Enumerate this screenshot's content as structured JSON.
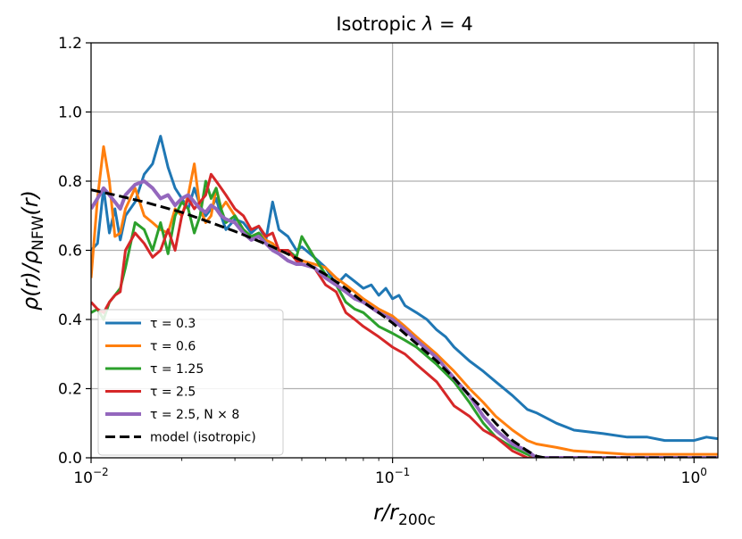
{
  "chart_data": {
    "type": "line",
    "title": "Isotropic λ = 4",
    "xlabel": "r/r200c",
    "ylabel": "ρ(r)/ρNFW(r)",
    "xscale": "log",
    "xlim": [
      0.01,
      1.2
    ],
    "ylim": [
      0,
      1.2
    ],
    "grid": true,
    "legend_position": "lower-left",
    "x_ticks": [
      {
        "value": 0.01,
        "base": "10",
        "exp": "−2"
      },
      {
        "value": 0.1,
        "base": "10",
        "exp": "−1"
      },
      {
        "value": 1,
        "base": "10",
        "exp": "0"
      }
    ],
    "y_ticks": [
      "0.0",
      "0.2",
      "0.4",
      "0.6",
      "0.8",
      "1.0",
      "1.2"
    ],
    "series": [
      {
        "name": "τ = 0.3",
        "color": "#1f77b4",
        "style": "solid",
        "x": [
          0.01,
          0.0105,
          0.011,
          0.0115,
          0.012,
          0.0125,
          0.013,
          0.014,
          0.015,
          0.016,
          0.017,
          0.018,
          0.019,
          0.02,
          0.021,
          0.022,
          0.023,
          0.024,
          0.025,
          0.026,
          0.027,
          0.028,
          0.03,
          0.032,
          0.034,
          0.036,
          0.038,
          0.04,
          0.042,
          0.045,
          0.048,
          0.05,
          0.055,
          0.06,
          0.065,
          0.07,
          0.075,
          0.08,
          0.085,
          0.09,
          0.095,
          0.1,
          0.105,
          0.11,
          0.12,
          0.13,
          0.14,
          0.15,
          0.16,
          0.18,
          0.2,
          0.22,
          0.25,
          0.28,
          0.3,
          0.35,
          0.4,
          0.5,
          0.6,
          0.7,
          0.8,
          0.9,
          1.0,
          1.1,
          1.2
        ],
        "y": [
          0.6,
          0.62,
          0.78,
          0.65,
          0.72,
          0.63,
          0.7,
          0.74,
          0.82,
          0.85,
          0.93,
          0.84,
          0.78,
          0.75,
          0.72,
          0.78,
          0.73,
          0.7,
          0.72,
          0.75,
          0.7,
          0.66,
          0.69,
          0.68,
          0.65,
          0.67,
          0.63,
          0.74,
          0.66,
          0.64,
          0.6,
          0.61,
          0.58,
          0.55,
          0.5,
          0.53,
          0.51,
          0.49,
          0.5,
          0.47,
          0.49,
          0.46,
          0.47,
          0.44,
          0.42,
          0.4,
          0.37,
          0.35,
          0.32,
          0.28,
          0.25,
          0.22,
          0.18,
          0.14,
          0.13,
          0.1,
          0.08,
          0.07,
          0.06,
          0.06,
          0.05,
          0.05,
          0.05,
          0.06,
          0.055
        ]
      },
      {
        "name": "τ = 0.6",
        "color": "#ff7f0e",
        "style": "solid",
        "x": [
          0.01,
          0.0105,
          0.011,
          0.0115,
          0.012,
          0.0125,
          0.013,
          0.014,
          0.015,
          0.016,
          0.017,
          0.018,
          0.019,
          0.02,
          0.021,
          0.022,
          0.023,
          0.024,
          0.025,
          0.026,
          0.027,
          0.028,
          0.03,
          0.032,
          0.034,
          0.036,
          0.038,
          0.04,
          0.042,
          0.045,
          0.048,
          0.05,
          0.055,
          0.06,
          0.065,
          0.07,
          0.075,
          0.08,
          0.09,
          0.1,
          0.11,
          0.12,
          0.14,
          0.16,
          0.18,
          0.2,
          0.22,
          0.25,
          0.28,
          0.3,
          0.35,
          0.4,
          0.5,
          0.6,
          0.8,
          1.0,
          1.2
        ],
        "y": [
          0.52,
          0.75,
          0.9,
          0.8,
          0.64,
          0.65,
          0.72,
          0.78,
          0.7,
          0.68,
          0.66,
          0.65,
          0.72,
          0.7,
          0.76,
          0.85,
          0.72,
          0.68,
          0.7,
          0.78,
          0.72,
          0.74,
          0.7,
          0.66,
          0.64,
          0.65,
          0.63,
          0.62,
          0.6,
          0.59,
          0.58,
          0.57,
          0.56,
          0.55,
          0.52,
          0.5,
          0.48,
          0.46,
          0.43,
          0.41,
          0.38,
          0.35,
          0.3,
          0.25,
          0.2,
          0.16,
          0.12,
          0.08,
          0.05,
          0.04,
          0.03,
          0.02,
          0.015,
          0.01,
          0.01,
          0.01,
          0.01
        ]
      },
      {
        "name": "τ = 1.25",
        "color": "#2ca02c",
        "style": "solid",
        "x": [
          0.01,
          0.0105,
          0.011,
          0.0115,
          0.012,
          0.0125,
          0.013,
          0.014,
          0.015,
          0.016,
          0.017,
          0.018,
          0.019,
          0.02,
          0.021,
          0.022,
          0.023,
          0.024,
          0.025,
          0.026,
          0.027,
          0.028,
          0.03,
          0.032,
          0.034,
          0.036,
          0.038,
          0.04,
          0.042,
          0.045,
          0.048,
          0.05,
          0.055,
          0.06,
          0.065,
          0.07,
          0.075,
          0.08,
          0.09,
          0.1,
          0.11,
          0.12,
          0.14,
          0.16,
          0.18,
          0.2,
          0.22,
          0.25,
          0.28,
          0.3,
          0.35,
          0.4,
          0.5,
          0.6,
          0.8,
          1.0,
          1.2
        ],
        "y": [
          0.42,
          0.43,
          0.4,
          0.45,
          0.47,
          0.49,
          0.55,
          0.68,
          0.66,
          0.6,
          0.68,
          0.59,
          0.7,
          0.74,
          0.72,
          0.65,
          0.7,
          0.8,
          0.75,
          0.78,
          0.72,
          0.68,
          0.7,
          0.66,
          0.64,
          0.65,
          0.62,
          0.61,
          0.6,
          0.6,
          0.58,
          0.64,
          0.58,
          0.53,
          0.5,
          0.45,
          0.43,
          0.42,
          0.38,
          0.36,
          0.34,
          0.32,
          0.27,
          0.22,
          0.16,
          0.1,
          0.06,
          0.03,
          0.01,
          0.0,
          0.0,
          0.0,
          0.0,
          0.0,
          0.0,
          0.0,
          0.0
        ]
      },
      {
        "name": "τ = 2.5",
        "color": "#d62728",
        "style": "solid",
        "x": [
          0.01,
          0.0105,
          0.011,
          0.0115,
          0.012,
          0.0125,
          0.013,
          0.014,
          0.015,
          0.016,
          0.017,
          0.018,
          0.019,
          0.02,
          0.021,
          0.022,
          0.023,
          0.024,
          0.025,
          0.026,
          0.027,
          0.028,
          0.03,
          0.032,
          0.034,
          0.036,
          0.038,
          0.04,
          0.042,
          0.045,
          0.048,
          0.05,
          0.055,
          0.06,
          0.065,
          0.07,
          0.075,
          0.08,
          0.09,
          0.1,
          0.11,
          0.12,
          0.14,
          0.16,
          0.18,
          0.2,
          0.22,
          0.25,
          0.28,
          0.3,
          0.35,
          0.4,
          0.5,
          0.6,
          0.8,
          1.0,
          1.2
        ],
        "y": [
          0.45,
          0.43,
          0.42,
          0.45,
          0.47,
          0.48,
          0.6,
          0.65,
          0.62,
          0.58,
          0.6,
          0.66,
          0.6,
          0.7,
          0.75,
          0.72,
          0.74,
          0.76,
          0.82,
          0.8,
          0.78,
          0.76,
          0.72,
          0.7,
          0.66,
          0.67,
          0.64,
          0.65,
          0.6,
          0.6,
          0.57,
          0.56,
          0.55,
          0.5,
          0.48,
          0.42,
          0.4,
          0.38,
          0.35,
          0.32,
          0.3,
          0.27,
          0.22,
          0.15,
          0.12,
          0.08,
          0.06,
          0.02,
          0.0,
          0.0,
          0.0,
          0.0,
          0.0,
          0.0,
          0.0,
          0.0,
          0.0
        ]
      },
      {
        "name": "τ = 2.5, N × 8",
        "color": "#9467bd",
        "style": "solid",
        "x": [
          0.01,
          0.0105,
          0.011,
          0.0115,
          0.012,
          0.0125,
          0.013,
          0.014,
          0.015,
          0.016,
          0.017,
          0.018,
          0.019,
          0.02,
          0.021,
          0.022,
          0.023,
          0.024,
          0.025,
          0.026,
          0.027,
          0.028,
          0.03,
          0.032,
          0.034,
          0.036,
          0.038,
          0.04,
          0.042,
          0.045,
          0.048,
          0.05,
          0.055,
          0.06,
          0.065,
          0.07,
          0.075,
          0.08,
          0.09,
          0.1,
          0.11,
          0.12,
          0.14,
          0.16,
          0.18,
          0.2,
          0.22,
          0.25,
          0.28,
          0.3,
          0.35,
          0.4,
          0.5,
          0.6,
          0.8,
          1.0,
          1.2
        ],
        "y": [
          0.72,
          0.75,
          0.78,
          0.76,
          0.74,
          0.72,
          0.76,
          0.79,
          0.8,
          0.78,
          0.75,
          0.76,
          0.73,
          0.75,
          0.76,
          0.74,
          0.72,
          0.71,
          0.73,
          0.72,
          0.7,
          0.69,
          0.68,
          0.65,
          0.63,
          0.64,
          0.62,
          0.6,
          0.59,
          0.57,
          0.56,
          0.56,
          0.55,
          0.52,
          0.5,
          0.48,
          0.46,
          0.45,
          0.42,
          0.4,
          0.37,
          0.34,
          0.29,
          0.23,
          0.18,
          0.12,
          0.08,
          0.04,
          0.02,
          0.0,
          0.0,
          0.0,
          0.0,
          0.0,
          0.0,
          0.0,
          0.0
        ]
      },
      {
        "name": "model (isotropic)",
        "color": "#000000",
        "style": "dashed",
        "x": [
          0.01,
          0.012,
          0.015,
          0.02,
          0.025,
          0.03,
          0.04,
          0.05,
          0.06,
          0.07,
          0.08,
          0.09,
          0.1,
          0.12,
          0.14,
          0.16,
          0.18,
          0.2,
          0.22,
          0.25,
          0.28,
          0.3,
          0.32,
          0.35,
          0.4,
          0.5,
          0.6,
          0.8,
          1.0,
          1.2
        ],
        "y": [
          0.775,
          0.76,
          0.74,
          0.71,
          0.68,
          0.655,
          0.61,
          0.57,
          0.53,
          0.49,
          0.45,
          0.42,
          0.39,
          0.33,
          0.28,
          0.23,
          0.18,
          0.14,
          0.1,
          0.05,
          0.02,
          0.005,
          0.0,
          0.0,
          0.0,
          0.0,
          0.0,
          0.0,
          0.0,
          0.0
        ]
      }
    ]
  }
}
